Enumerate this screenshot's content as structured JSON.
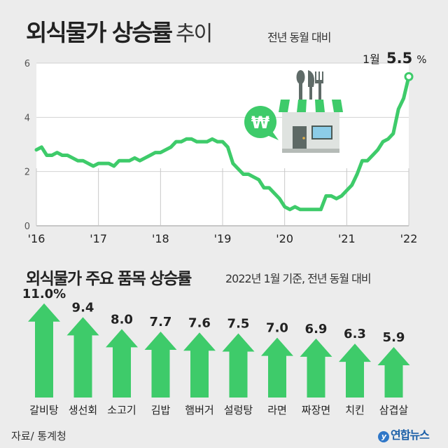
{
  "header": {
    "title": "외식물가 상승률",
    "title_suffix": "추이",
    "subtitle": "전년 동월 대비"
  },
  "line_annotation": {
    "label": "1월",
    "value": "5.5",
    "unit": "%"
  },
  "bar_section": {
    "title": "외식물가 주요 품목 상승률",
    "subtitle": "2022년 1월 기준, 전년 동월 대비"
  },
  "footer": {
    "source": "자료/ 통계청",
    "logo": "연합뉴스"
  },
  "colors": {
    "accent": "#3ecb6a",
    "background": "#ececec",
    "plot_bg": "#ffffff"
  },
  "icons": [
    "won-coin-icon",
    "restaurant-store-icon",
    "fork-knife-spoon-icon"
  ],
  "chart_data": [
    {
      "type": "line",
      "ylim": [
        0,
        6
      ],
      "yticks": [
        "0",
        "2",
        "4",
        "6"
      ],
      "xticks": [
        "'16",
        "'17",
        "'18",
        "'19",
        "'20",
        "'21",
        "'22"
      ],
      "grid": true,
      "series": [
        {
          "x": [
            "2016-01",
            "2016-02",
            "2016-03",
            "2016-04",
            "2016-05",
            "2016-06",
            "2016-07",
            "2016-08",
            "2016-09",
            "2016-10",
            "2016-11",
            "2016-12",
            "2017-01",
            "2017-02",
            "2017-03",
            "2017-04",
            "2017-05",
            "2017-06",
            "2017-07",
            "2017-08",
            "2017-09",
            "2017-10",
            "2017-11",
            "2017-12",
            "2018-01",
            "2018-02",
            "2018-03",
            "2018-04",
            "2018-05",
            "2018-06",
            "2018-07",
            "2018-08",
            "2018-09",
            "2018-10",
            "2018-11",
            "2018-12",
            "2019-01",
            "2019-02",
            "2019-03",
            "2019-04",
            "2019-05",
            "2019-06",
            "2019-07",
            "2019-08",
            "2019-09",
            "2019-10",
            "2019-11",
            "2019-12",
            "2020-01",
            "2020-02",
            "2020-03",
            "2020-04",
            "2020-05",
            "2020-06",
            "2020-07",
            "2020-08",
            "2020-09",
            "2020-10",
            "2020-11",
            "2020-12",
            "2021-01",
            "2021-02",
            "2021-03",
            "2021-04",
            "2021-05",
            "2021-06",
            "2021-07",
            "2021-08",
            "2021-09",
            "2021-10",
            "2021-11",
            "2021-12",
            "2022-01"
          ],
          "values": [
            2.8,
            2.9,
            2.6,
            2.6,
            2.7,
            2.6,
            2.6,
            2.5,
            2.4,
            2.4,
            2.3,
            2.2,
            2.3,
            2.3,
            2.3,
            2.2,
            2.4,
            2.4,
            2.4,
            2.5,
            2.4,
            2.5,
            2.6,
            2.7,
            2.7,
            2.8,
            2.9,
            3.1,
            3.1,
            3.2,
            3.2,
            3.1,
            3.1,
            3.1,
            3.2,
            3.1,
            3.1,
            2.9,
            2.3,
            2.1,
            1.9,
            1.9,
            1.8,
            1.7,
            1.4,
            1.4,
            1.2,
            1.0,
            0.7,
            0.6,
            0.7,
            0.6,
            0.6,
            0.6,
            0.6,
            0.6,
            1.1,
            1.1,
            1.0,
            1.1,
            1.3,
            1.5,
            1.9,
            2.4,
            2.4,
            2.6,
            2.8,
            3.1,
            3.2,
            3.4,
            4.3,
            4.7,
            5.5
          ]
        }
      ]
    },
    {
      "type": "bar",
      "categories": [
        "갈비탕",
        "생선회",
        "소고기",
        "김밥",
        "햄버거",
        "설렁탕",
        "라면",
        "짜장면",
        "치킨",
        "삼겹살"
      ],
      "values": [
        11.0,
        9.4,
        8.0,
        7.7,
        7.6,
        7.5,
        7.0,
        6.9,
        6.3,
        5.9
      ],
      "labels": [
        "11.0%",
        "9.4",
        "8.0",
        "7.7",
        "7.6",
        "7.5",
        "7.0",
        "6.9",
        "6.3",
        "5.9"
      ]
    }
  ]
}
